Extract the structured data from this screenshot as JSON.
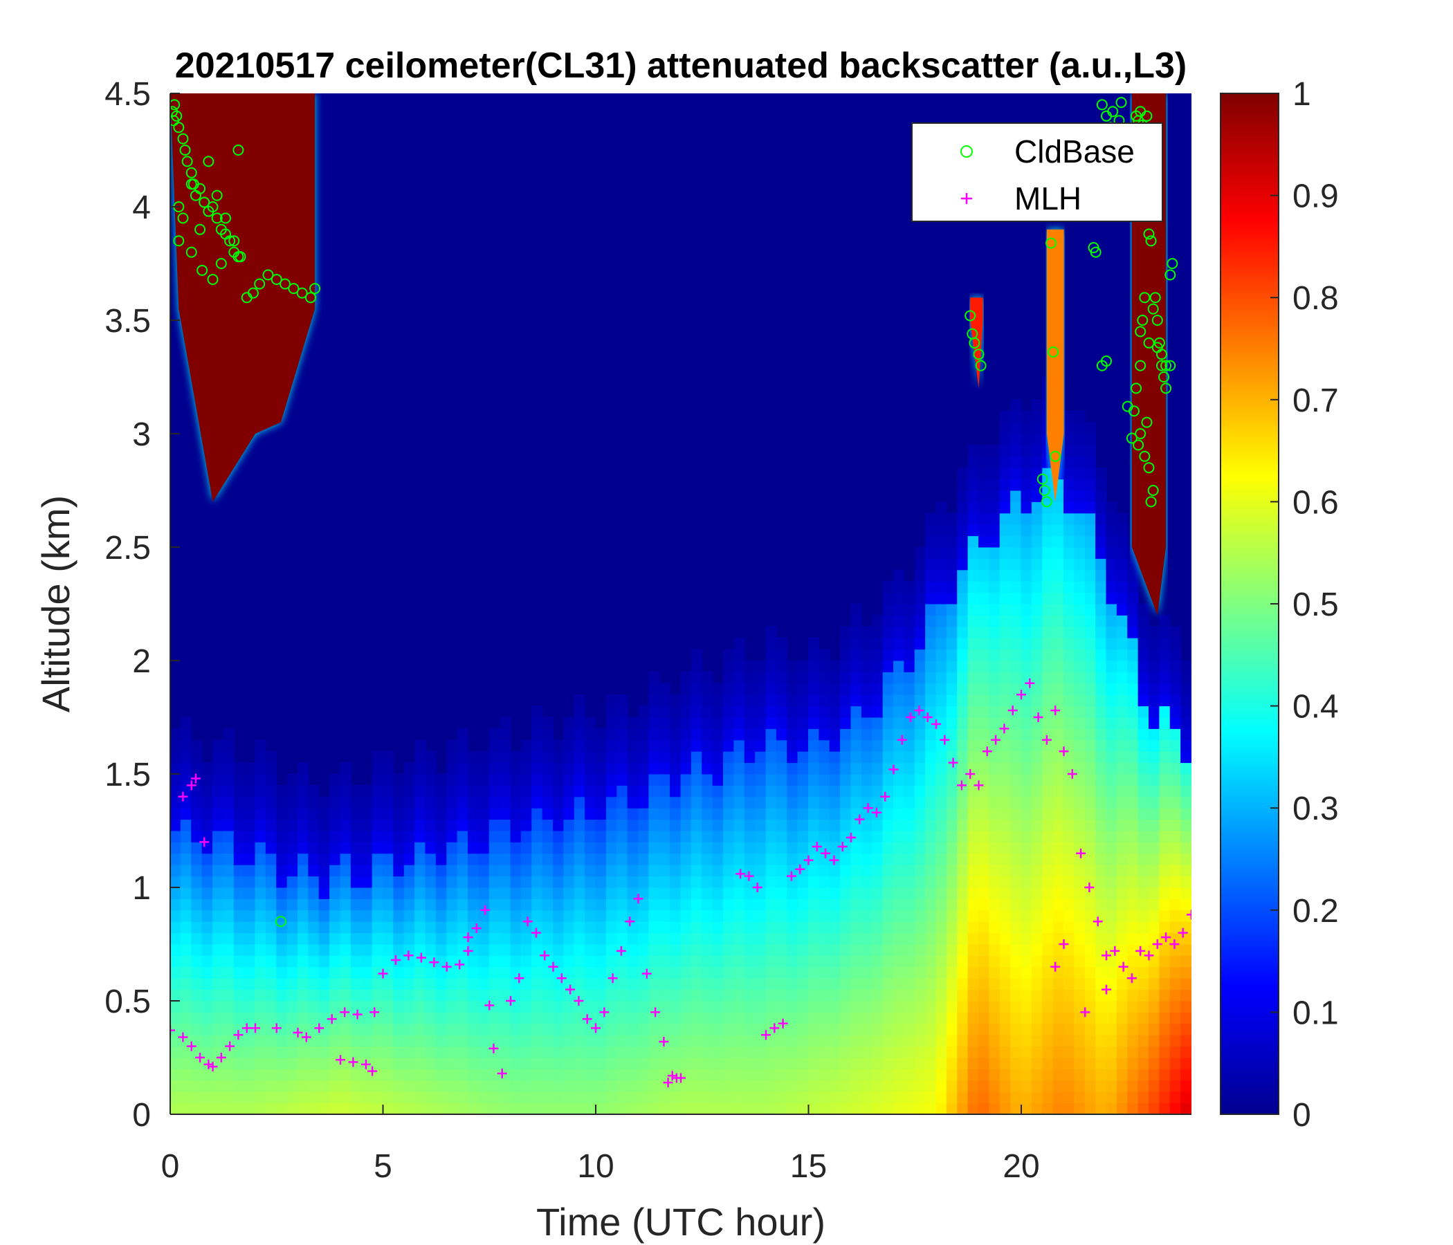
{
  "chart_data": {
    "type": "heatmap",
    "title": "20210517 ceilometer(CL31) attenuated backscatter (a.u.,L3)",
    "xlabel": "Time (UTC hour)",
    "ylabel": "Altitude (km)",
    "xlim": [
      0,
      24
    ],
    "ylim": [
      0,
      4.5
    ],
    "xticks": [
      "0",
      "5",
      "10",
      "15",
      "20"
    ],
    "xtick_values": [
      0,
      5,
      10,
      15,
      20
    ],
    "yticks": [
      "0",
      "0.5",
      "1",
      "1.5",
      "2",
      "2.5",
      "3",
      "3.5",
      "4",
      "4.5"
    ],
    "ytick_values": [
      0,
      0.5,
      1,
      1.5,
      2,
      2.5,
      3,
      3.5,
      4,
      4.5
    ],
    "colorbar": {
      "colormap": "jet",
      "range": [
        0,
        1
      ],
      "ticks": [
        "0",
        "0.1",
        "0.2",
        "0.3",
        "0.4",
        "0.5",
        "0.6",
        "0.7",
        "0.8",
        "0.9",
        "1"
      ],
      "tick_values": [
        0,
        0.1,
        0.2,
        0.3,
        0.4,
        0.5,
        0.6,
        0.7,
        0.8,
        0.9,
        1
      ]
    },
    "legend": {
      "position": "top-right",
      "entries": [
        {
          "label": "CldBase",
          "marker": "circle",
          "color": "#00ff00"
        },
        {
          "label": "MLH",
          "marker": "plus",
          "color": "#ff00ff"
        }
      ]
    },
    "boundary_layer_top_km": {
      "x": [
        0,
        1,
        2,
        3,
        4,
        5,
        6,
        7,
        8,
        9,
        10,
        11,
        12,
        13,
        14,
        15,
        16,
        17,
        18,
        19,
        20,
        21,
        22,
        23,
        24
      ],
      "y": [
        1.25,
        1.2,
        1.15,
        1.05,
        1.05,
        1.1,
        1.15,
        1.2,
        1.25,
        1.3,
        1.35,
        1.4,
        1.5,
        1.55,
        1.65,
        1.6,
        1.7,
        1.9,
        2.2,
        2.5,
        2.7,
        2.8,
        2.4,
        1.8,
        1.6
      ]
    },
    "near_surface_intensity": {
      "x": [
        0,
        2,
        4,
        6,
        8,
        10,
        12,
        14,
        16,
        18,
        19,
        20,
        21,
        22,
        23,
        24
      ],
      "value": [
        0.55,
        0.55,
        0.58,
        0.55,
        0.52,
        0.52,
        0.55,
        0.55,
        0.58,
        0.62,
        0.78,
        0.7,
        0.75,
        0.7,
        0.8,
        0.92
      ]
    },
    "cloud_regions": [
      {
        "x_start": 0,
        "x_end": 3.4,
        "base_km": [
          3.55,
          2.7,
          3.0,
          3.05,
          3.55
        ],
        "base_x": [
          0.2,
          1.0,
          2.0,
          2.6,
          3.4
        ],
        "top_km": 4.5,
        "value": 1.0
      },
      {
        "x_start": 18.8,
        "x_end": 19.1,
        "base_km": [
          3.2
        ],
        "base_x": [
          19.0
        ],
        "top_km": 3.6,
        "value": 0.85
      },
      {
        "x_start": 20.6,
        "x_end": 21.0,
        "base_km": [
          2.7
        ],
        "base_x": [
          20.8
        ],
        "top_km": 3.9,
        "value": 0.75
      },
      {
        "x_start": 22.6,
        "x_end": 23.4,
        "base_km": [
          2.2
        ],
        "base_x": [
          23.2
        ],
        "top_km": 4.5,
        "value": 1.0
      }
    ],
    "series": [
      {
        "name": "CldBase",
        "marker": "circle",
        "color": "#00ff00",
        "x": [
          0.05,
          0.08,
          0.1,
          0.15,
          0.2,
          0.3,
          0.35,
          0.4,
          0.5,
          0.55,
          0.6,
          0.7,
          0.8,
          0.9,
          1.0,
          1.1,
          1.2,
          1.3,
          1.4,
          1.5,
          1.6,
          0.2,
          0.3,
          0.5,
          0.7,
          0.9,
          1.1,
          1.3,
          1.5,
          1.65,
          1.8,
          1.95,
          2.1,
          2.3,
          2.5,
          2.7,
          2.9,
          3.1,
          3.3,
          3.4,
          0.2,
          0.5,
          0.75,
          1.0,
          1.2,
          1.6,
          2.6,
          18.8,
          18.85,
          18.9,
          19.0,
          19.05,
          20.5,
          20.55,
          20.6,
          20.7,
          20.75,
          20.8,
          21.9,
          22.0,
          22.1,
          22.15,
          22.3,
          22.35,
          21.7,
          21.75,
          21.9,
          22.0,
          22.5,
          22.6,
          22.65,
          22.7,
          22.8,
          22.8,
          22.85,
          22.9,
          22.9,
          23.0,
          23.05,
          23.1,
          23.1,
          23.15,
          23.2,
          23.25,
          23.3,
          23.35,
          23.4,
          23.5,
          23.55,
          22.7,
          22.75,
          22.8,
          22.85,
          22.95,
          23.0,
          23.05,
          22.75,
          22.8,
          22.95,
          23.0,
          23.2,
          23.3,
          23.4,
          23.5
        ],
        "y": [
          4.42,
          4.38,
          4.45,
          4.4,
          4.35,
          4.3,
          4.25,
          4.2,
          4.15,
          4.1,
          4.05,
          4.08,
          4.02,
          3.98,
          4.0,
          3.95,
          3.9,
          3.88,
          3.85,
          3.8,
          3.78,
          4.0,
          3.95,
          4.1,
          3.9,
          4.2,
          4.05,
          3.95,
          3.85,
          3.78,
          3.6,
          3.62,
          3.66,
          3.7,
          3.68,
          3.66,
          3.64,
          3.62,
          3.6,
          3.64,
          3.85,
          3.8,
          3.72,
          3.68,
          3.75,
          4.25,
          0.85,
          3.52,
          3.44,
          3.4,
          3.35,
          3.3,
          2.8,
          2.75,
          2.7,
          3.84,
          3.36,
          2.9,
          4.45,
          4.4,
          4.35,
          4.42,
          4.38,
          4.46,
          3.82,
          3.8,
          3.3,
          3.32,
          3.12,
          2.98,
          3.1,
          3.2,
          3.3,
          3.45,
          3.5,
          3.6,
          2.9,
          2.85,
          2.7,
          2.75,
          3.55,
          3.6,
          3.5,
          3.4,
          3.3,
          3.25,
          3.2,
          3.7,
          3.75,
          4.4,
          4.38,
          4.42,
          4.36,
          4.4,
          3.88,
          3.85,
          2.95,
          3.0,
          3.05,
          3.4,
          3.38,
          3.35,
          3.3,
          3.3
        ]
      },
      {
        "name": "MLH",
        "marker": "plus",
        "color": "#ff00ff",
        "x": [
          0,
          0.3,
          0.5,
          0.7,
          0.9,
          1.0,
          1.2,
          1.4,
          1.6,
          1.8,
          2.0,
          2.5,
          3.0,
          3.2,
          3.5,
          3.8,
          4.1,
          4.4,
          4.8,
          4.0,
          4.3,
          4.6,
          4.75,
          5.0,
          5.3,
          5.6,
          5.9,
          6.2,
          6.5,
          6.8,
          7.0,
          7.2,
          7.4,
          7.0,
          7.5,
          7.6,
          7.8,
          8.0,
          8.2,
          8.4,
          8.6,
          8.8,
          9.0,
          9.2,
          9.4,
          9.6,
          9.8,
          10.0,
          10.2,
          10.4,
          10.6,
          10.8,
          11.0,
          11.2,
          11.4,
          11.6,
          11.7,
          11.8,
          11.9,
          12.0,
          13.4,
          13.6,
          13.8,
          14.0,
          14.2,
          14.4,
          14.6,
          14.8,
          15.0,
          15.2,
          15.4,
          15.6,
          15.8,
          16.0,
          16.2,
          16.4,
          16.6,
          16.8,
          17.0,
          17.2,
          17.4,
          17.6,
          17.8,
          18.0,
          18.2,
          18.4,
          18.6,
          18.8,
          19.0,
          19.2,
          19.4,
          19.6,
          19.8,
          20.0,
          20.2,
          20.4,
          20.6,
          20.8,
          21.0,
          21.2,
          21.4,
          21.6,
          21.8,
          22.0,
          22.2,
          22.4,
          22.6,
          22.8,
          23.0,
          23.2,
          23.4,
          23.6,
          23.8,
          24.0,
          0.3,
          0.5,
          0.6,
          0.8,
          20.8,
          21.0,
          21.5,
          22.0
        ],
        "y": [
          0.37,
          0.34,
          0.3,
          0.25,
          0.22,
          0.21,
          0.25,
          0.3,
          0.35,
          0.38,
          0.38,
          0.38,
          0.36,
          0.34,
          0.38,
          0.42,
          0.45,
          0.44,
          0.45,
          0.24,
          0.23,
          0.22,
          0.19,
          0.62,
          0.68,
          0.7,
          0.69,
          0.67,
          0.65,
          0.66,
          0.72,
          0.82,
          0.9,
          0.78,
          0.48,
          0.29,
          0.18,
          0.5,
          0.6,
          0.85,
          0.8,
          0.7,
          0.65,
          0.6,
          0.55,
          0.5,
          0.42,
          0.38,
          0.45,
          0.6,
          0.72,
          0.85,
          0.95,
          0.62,
          0.45,
          0.32,
          0.14,
          0.17,
          0.16,
          0.16,
          1.06,
          1.05,
          1.0,
          0.35,
          0.38,
          0.4,
          1.05,
          1.08,
          1.12,
          1.18,
          1.15,
          1.12,
          1.18,
          1.22,
          1.3,
          1.35,
          1.33,
          1.4,
          1.52,
          1.65,
          1.75,
          1.78,
          1.75,
          1.72,
          1.65,
          1.55,
          1.45,
          1.5,
          1.45,
          1.6,
          1.65,
          1.7,
          1.78,
          1.85,
          1.9,
          1.75,
          1.65,
          1.78,
          1.6,
          1.5,
          1.15,
          1.0,
          0.85,
          0.7,
          0.72,
          0.65,
          0.6,
          0.72,
          0.7,
          0.75,
          0.78,
          0.75,
          0.8,
          0.88,
          1.4,
          1.45,
          1.48,
          1.2,
          0.65,
          0.75,
          0.45,
          0.55
        ]
      }
    ]
  }
}
